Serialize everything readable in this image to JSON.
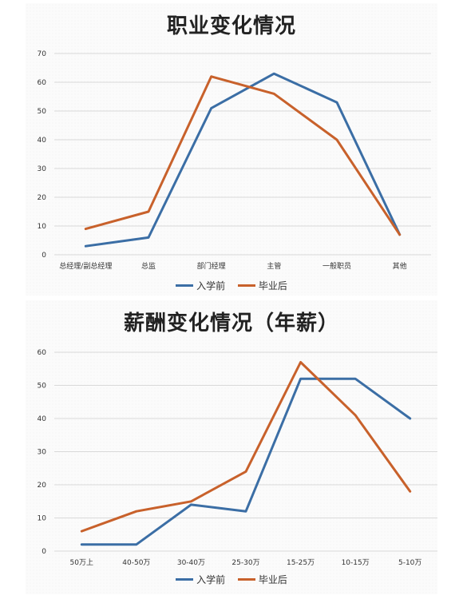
{
  "colors": {
    "before": "#3b6ea5",
    "after": "#c8612b"
  },
  "chart_data": [
    {
      "type": "line",
      "title": "职业变化情况",
      "categories": [
        "总经理/副总经理",
        "总监",
        "部门经理",
        "主管",
        "一般职员",
        "其他"
      ],
      "series": [
        {
          "name": "入学前",
          "values": [
            3,
            6,
            51,
            63,
            53,
            7
          ]
        },
        {
          "name": "毕业后",
          "values": [
            9,
            15,
            62,
            56,
            40,
            7
          ]
        }
      ],
      "ylim": [
        0,
        70
      ],
      "yticks": [
        0,
        10,
        20,
        30,
        40,
        50,
        60,
        70
      ],
      "grid": true,
      "legend": "bottom"
    },
    {
      "type": "line",
      "title": "薪酬变化情况（年薪）",
      "categories": [
        "50万上",
        "40-50万",
        "30-40万",
        "25-30万",
        "15-25万",
        "10-15万",
        "5-10万"
      ],
      "series": [
        {
          "name": "入学前",
          "values": [
            2,
            2,
            14,
            12,
            52,
            52,
            40
          ]
        },
        {
          "name": "毕业后",
          "values": [
            6,
            12,
            15,
            24,
            57,
            41,
            18
          ]
        }
      ],
      "ylim": [
        0,
        60
      ],
      "yticks": [
        0,
        10,
        20,
        30,
        40,
        50,
        60
      ],
      "grid": true,
      "legend": "bottom"
    }
  ]
}
